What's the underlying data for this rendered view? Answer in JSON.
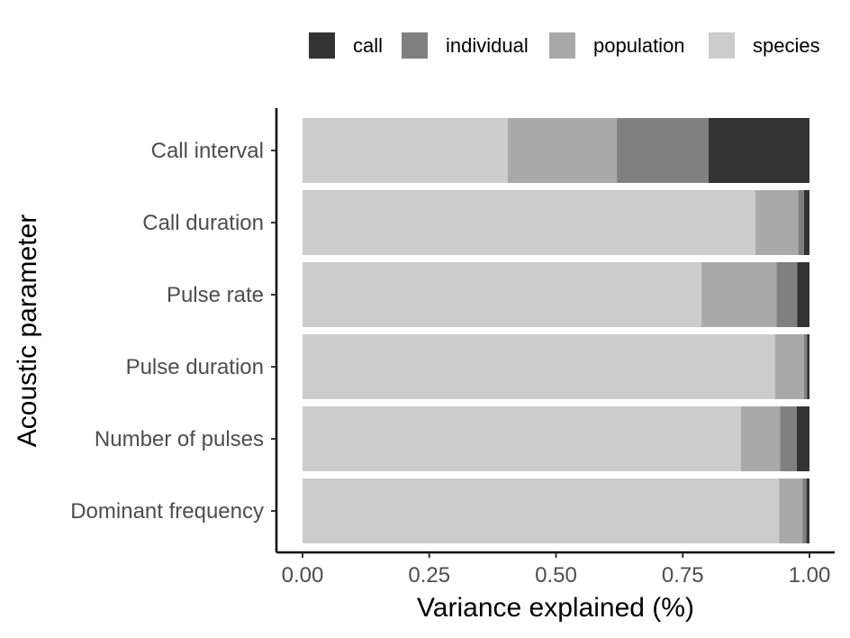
{
  "chart_data": {
    "type": "bar",
    "orientation": "horizontal",
    "stacked": true,
    "xlabel": "Variance explained (%)",
    "ylabel": "Acoustic parameter",
    "xlim": [
      0,
      1
    ],
    "xticks": [
      0.0,
      0.25,
      0.5,
      0.75,
      1.0
    ],
    "xtick_labels": [
      "0.00",
      "0.25",
      "0.50",
      "0.75",
      "1.00"
    ],
    "categories": [
      "Call interval",
      "Call duration",
      "Pulse rate",
      "Pulse duration",
      "Number of pulses",
      "Dominant frequency"
    ],
    "legend_position": "top-right",
    "grid": false,
    "series": [
      {
        "name": "species",
        "color": "#cccccc",
        "values": [
          0.405,
          0.893,
          0.787,
          0.932,
          0.865,
          0.94
        ]
      },
      {
        "name": "population",
        "color": "#a9a9a9",
        "values": [
          0.215,
          0.085,
          0.148,
          0.057,
          0.077,
          0.046
        ]
      },
      {
        "name": "individual",
        "color": "#808080",
        "values": [
          0.181,
          0.011,
          0.041,
          0.006,
          0.033,
          0.008
        ]
      },
      {
        "name": "call",
        "color": "#333333",
        "values": [
          0.199,
          0.011,
          0.024,
          0.005,
          0.025,
          0.006
        ]
      }
    ],
    "legend": [
      {
        "name": "call",
        "color": "#333333"
      },
      {
        "name": "individual",
        "color": "#808080"
      },
      {
        "name": "population",
        "color": "#a9a9a9"
      },
      {
        "name": "species",
        "color": "#cccccc"
      }
    ]
  }
}
